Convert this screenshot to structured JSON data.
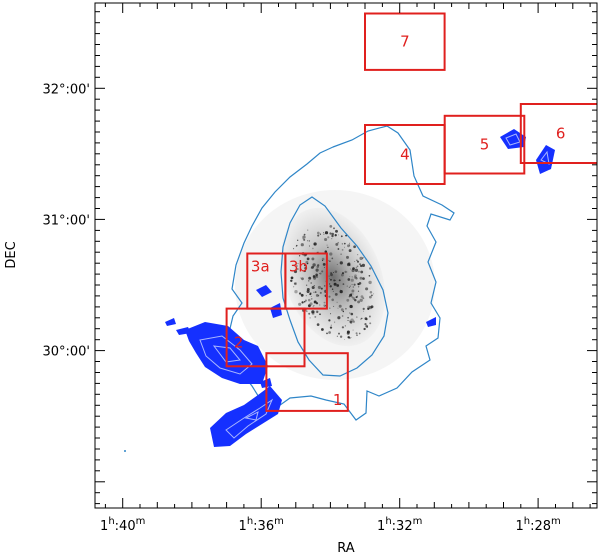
{
  "figure": {
    "xlabel": "RA",
    "ylabel": "DEC",
    "colors": {
      "field_box": "#e0201e",
      "contour": "#2f86c8",
      "cloud_fill": "#1530ff",
      "cloud_light": "#a9b6ff",
      "galaxy": "#222222"
    }
  },
  "chart_data": {
    "type": "scatter",
    "xlabel": "RA",
    "ylabel": "DEC",
    "x_tick_labels": [
      {
        "h": "1",
        "m": "40"
      },
      {
        "h": "1",
        "m": "36"
      },
      {
        "h": "1",
        "m": "32"
      },
      {
        "h": "1",
        "m": "28"
      }
    ],
    "y_tick_labels": [
      "32°:00'",
      "31°:00'",
      "30°:00'"
    ],
    "x_ticks_minutes": [
      100,
      96,
      92,
      88
    ],
    "y_ticks_degrees": [
      32,
      31,
      30
    ],
    "xlim_minutes": [
      100.8,
      86.3
    ],
    "ylim_degrees": [
      28.8,
      32.65
    ],
    "fields": [
      {
        "label": "1",
        "ra": [
          95.85,
          93.5
        ],
        "dec": [
          29.54,
          29.98
        ]
      },
      {
        "label": "2",
        "ra": [
          97.0,
          94.75
        ],
        "dec": [
          29.88,
          30.32
        ]
      },
      {
        "label": "3a",
        "ra": [
          96.4,
          95.3
        ],
        "dec": [
          30.32,
          30.74
        ]
      },
      {
        "label": "3b",
        "ra": [
          95.3,
          94.1
        ],
        "dec": [
          30.32,
          30.74
        ]
      },
      {
        "label": "4",
        "ra": [
          93.0,
          90.7
        ],
        "dec": [
          31.27,
          31.72
        ]
      },
      {
        "label": "5",
        "ra": [
          90.7,
          88.4
        ],
        "dec": [
          31.35,
          31.79
        ]
      },
      {
        "label": "6",
        "ra": [
          88.5,
          86.2
        ],
        "dec": [
          31.43,
          31.88
        ]
      },
      {
        "label": "7",
        "ra": [
          93.0,
          90.7
        ],
        "dec": [
          32.14,
          32.57
        ]
      }
    ]
  }
}
